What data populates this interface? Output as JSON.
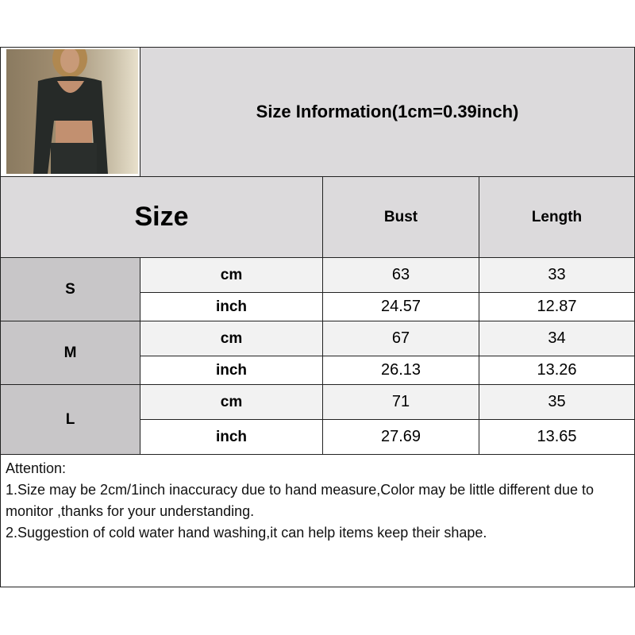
{
  "title": "Size Information(1cm=0.39inch)",
  "header": {
    "size": "Size",
    "bust": "Bust",
    "length": "Length"
  },
  "sizes": [
    {
      "label": "S",
      "rows": [
        {
          "unit": "cm",
          "bust": "63",
          "length": "33"
        },
        {
          "unit": "inch",
          "bust": "24.57",
          "length": "12.87"
        }
      ]
    },
    {
      "label": "M",
      "rows": [
        {
          "unit": "cm",
          "bust": "67",
          "length": "34"
        },
        {
          "unit": "inch",
          "bust": "26.13",
          "length": "13.26"
        }
      ]
    },
    {
      "label": "L",
      "rows": [
        {
          "unit": "cm",
          "bust": "71",
          "length": "35"
        },
        {
          "unit": "inch",
          "bust": "27.69",
          "length": "13.65"
        }
      ]
    }
  ],
  "notes": [
    "Attention:",
    "1.Size may be 2cm/1inch inaccuracy due to hand measure,Color may be little different due to monitor ,thanks for your understanding.",
    "2.Suggestion of cold water hand washing,it can help items keep their shape."
  ],
  "colors": {
    "header_bg": "#dcdadc",
    "size_bg": "#c8c6c8",
    "cm_bg": "#f2f2f2"
  }
}
